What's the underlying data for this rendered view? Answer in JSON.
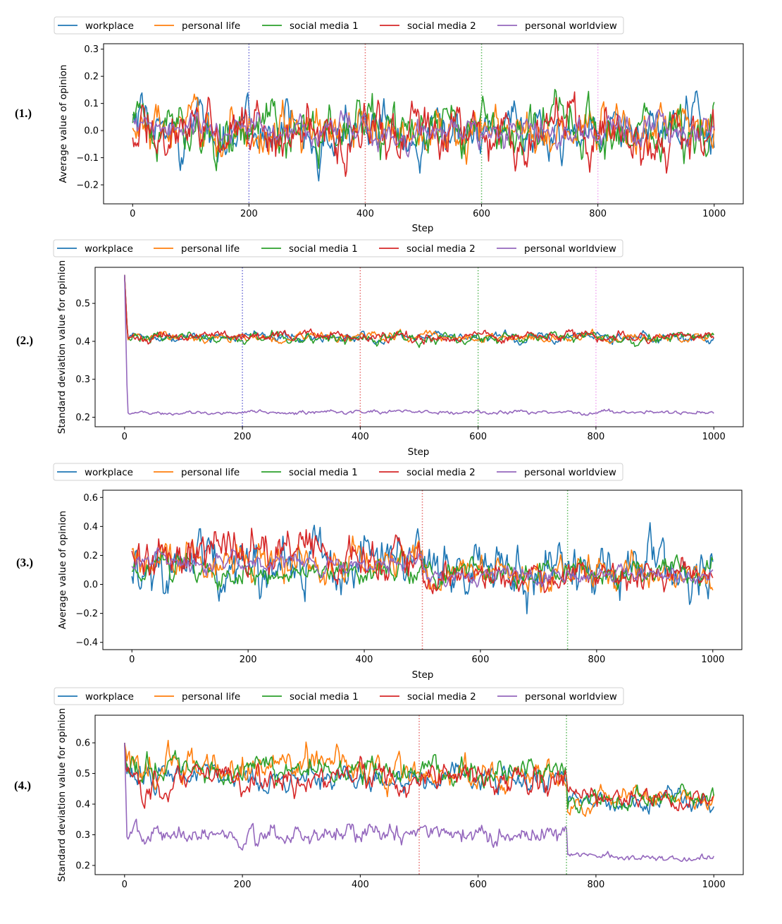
{
  "series_names": [
    "workplace",
    "personal life",
    "social media 1",
    "social media 2",
    "personal worldview"
  ],
  "colors": {
    "workplace": "#1f77b4",
    "personal_life": "#ff7f0e",
    "social_media_1": "#2ca02c",
    "social_media_2": "#d62728",
    "personal_worldview": "#9467bd",
    "vline_blue": "#6b6bd6",
    "vline_red": "#e66b6b",
    "vline_green": "#5cb85c",
    "vline_pink": "#f0a6f0"
  },
  "chart_data": [
    {
      "panel_label": "(1.)",
      "type": "line",
      "title": "",
      "xlabel": "Step",
      "ylabel": "Average value of opinion",
      "xlim": [
        -50,
        1050
      ],
      "ylim": [
        -0.27,
        0.32
      ],
      "xticks": [
        0,
        200,
        400,
        600,
        800,
        1000
      ],
      "xtick_labels": [
        "0",
        "200",
        "400",
        "600",
        "800",
        "1000"
      ],
      "yticks": [
        -0.2,
        -0.1,
        0.0,
        0.1,
        0.2,
        0.3
      ],
      "ytick_labels": [
        "−0.2",
        "−0.1",
        "0.0",
        "0.1",
        "0.2",
        "0.3"
      ],
      "legend_position": "top-left outside",
      "vlines": [
        {
          "x": 200,
          "color": "#6b6bd6"
        },
        {
          "x": 400,
          "color": "#e66b6b"
        },
        {
          "x": 600,
          "color": "#5cb85c"
        },
        {
          "x": 800,
          "color": "#f0a6f0"
        }
      ],
      "series": [
        {
          "name": "workplace",
          "color": "#1f77b4",
          "segments": [
            {
              "x0": 0,
              "x1": 1000,
              "mean": 0.0,
              "amp": 0.085
            }
          ]
        },
        {
          "name": "personal life",
          "color": "#ff7f0e",
          "segments": [
            {
              "x0": 0,
              "x1": 1000,
              "mean": 0.0,
              "amp": 0.085
            }
          ]
        },
        {
          "name": "social media 1",
          "color": "#2ca02c",
          "segments": [
            {
              "x0": 0,
              "x1": 1000,
              "mean": 0.0,
              "amp": 0.09
            }
          ]
        },
        {
          "name": "social media 2",
          "color": "#d62728",
          "segments": [
            {
              "x0": 0,
              "x1": 1000,
              "mean": 0.0,
              "amp": 0.09
            }
          ]
        },
        {
          "name": "personal worldview",
          "color": "#9467bd",
          "segments": [
            {
              "x0": 0,
              "x1": 1000,
              "mean": 0.0,
              "amp": 0.05
            }
          ]
        }
      ]
    },
    {
      "panel_label": "(2.)",
      "type": "line",
      "title": "",
      "xlabel": "Step",
      "ylabel": "Standard deviation value for opinion",
      "xlim": [
        -50,
        1050
      ],
      "ylim": [
        0.175,
        0.595
      ],
      "xticks": [
        0,
        200,
        400,
        600,
        800,
        1000
      ],
      "xtick_labels": [
        "0",
        "200",
        "400",
        "600",
        "800",
        "1000"
      ],
      "yticks": [
        0.2,
        0.3,
        0.4,
        0.5
      ],
      "ytick_labels": [
        "0.2",
        "0.3",
        "0.4",
        "0.5"
      ],
      "legend_position": "top-left outside",
      "vlines": [
        {
          "x": 200,
          "color": "#6b6bd6"
        },
        {
          "x": 400,
          "color": "#e66b6b"
        },
        {
          "x": 600,
          "color": "#5cb85c"
        },
        {
          "x": 800,
          "color": "#f0a6f0"
        }
      ],
      "series": [
        {
          "name": "workplace",
          "color": "#1f77b4",
          "start": 0.575,
          "settle": 5,
          "segments": [
            {
              "x0": 0,
              "x1": 1000,
              "mean": 0.412,
              "amp": 0.012
            }
          ]
        },
        {
          "name": "personal life",
          "color": "#ff7f0e",
          "start": 0.575,
          "settle": 5,
          "segments": [
            {
              "x0": 0,
              "x1": 1000,
              "mean": 0.412,
              "amp": 0.012
            }
          ]
        },
        {
          "name": "social media 1",
          "color": "#2ca02c",
          "start": 0.575,
          "settle": 5,
          "segments": [
            {
              "x0": 0,
              "x1": 1000,
              "mean": 0.41,
              "amp": 0.013
            }
          ]
        },
        {
          "name": "social media 2",
          "color": "#d62728",
          "start": 0.575,
          "settle": 5,
          "segments": [
            {
              "x0": 0,
              "x1": 1000,
              "mean": 0.413,
              "amp": 0.013
            }
          ]
        },
        {
          "name": "personal worldview",
          "color": "#9467bd",
          "start": 0.575,
          "settle": 5,
          "segments": [
            {
              "x0": 0,
              "x1": 1000,
              "mean": 0.213,
              "amp": 0.005
            }
          ]
        }
      ]
    },
    {
      "panel_label": "(3.)",
      "type": "line",
      "title": "",
      "xlabel": "Step",
      "ylabel": "Average value of opinion",
      "xlim": [
        -50,
        1050
      ],
      "ylim": [
        -0.45,
        0.65
      ],
      "xticks": [
        0,
        200,
        400,
        600,
        800,
        1000
      ],
      "xtick_labels": [
        "0",
        "200",
        "400",
        "600",
        "800",
        "1000"
      ],
      "yticks": [
        -0.4,
        -0.2,
        0.0,
        0.2,
        0.4,
        0.6
      ],
      "ytick_labels": [
        "−0.4",
        "−0.2",
        "0.0",
        "0.2",
        "0.4",
        "0.6"
      ],
      "legend_position": "top-left outside",
      "vlines": [
        {
          "x": 500,
          "color": "#e66b6b"
        },
        {
          "x": 750,
          "color": "#5cb85c"
        }
      ],
      "series": [
        {
          "name": "workplace",
          "color": "#1f77b4",
          "segments": [
            {
              "x0": 0,
              "x1": 1000,
              "mean": 0.13,
              "amp": 0.18
            }
          ]
        },
        {
          "name": "personal life",
          "color": "#ff7f0e",
          "segments": [
            {
              "x0": 0,
              "x1": 500,
              "mean": 0.17,
              "amp": 0.12
            },
            {
              "x0": 500,
              "x1": 1000,
              "mean": 0.07,
              "amp": 0.1
            }
          ]
        },
        {
          "name": "social media 1",
          "color": "#2ca02c",
          "segments": [
            {
              "x0": 0,
              "x1": 1000,
              "mean": 0.09,
              "amp": 0.08
            }
          ]
        },
        {
          "name": "social media 2",
          "color": "#d62728",
          "segments": [
            {
              "x0": 0,
              "x1": 500,
              "mean": 0.2,
              "amp": 0.16
            },
            {
              "x0": 500,
              "x1": 1000,
              "mean": 0.06,
              "amp": 0.1
            }
          ]
        },
        {
          "name": "personal worldview",
          "color": "#9467bd",
          "segments": [
            {
              "x0": 0,
              "x1": 500,
              "mean": 0.15,
              "amp": 0.06
            },
            {
              "x0": 500,
              "x1": 1000,
              "mean": 0.06,
              "amp": 0.05
            }
          ]
        }
      ]
    },
    {
      "panel_label": "(4.)",
      "type": "line",
      "title": "",
      "xlabel": "",
      "ylabel": "Standard deviation value for opinion",
      "xlim": [
        -50,
        1050
      ],
      "ylim": [
        0.17,
        0.69
      ],
      "xticks": [
        0,
        200,
        400,
        600,
        800,
        1000
      ],
      "xtick_labels": [
        "0",
        "200",
        "400",
        "600",
        "800",
        "1000"
      ],
      "yticks": [
        0.2,
        0.3,
        0.4,
        0.5,
        0.6
      ],
      "ytick_labels": [
        "0.2",
        "0.3",
        "0.4",
        "0.5",
        "0.6"
      ],
      "legend_position": "top-left outside",
      "vlines": [
        {
          "x": 500,
          "color": "#e66b6b"
        },
        {
          "x": 750,
          "color": "#5cb85c"
        }
      ],
      "series": [
        {
          "name": "workplace",
          "color": "#1f77b4",
          "start": 0.6,
          "settle": 3,
          "segments": [
            {
              "x0": 0,
              "x1": 750,
              "mean": 0.49,
              "amp": 0.04
            },
            {
              "x0": 750,
              "x1": 1000,
              "mean": 0.41,
              "amp": 0.03
            }
          ]
        },
        {
          "name": "personal life",
          "color": "#ff7f0e",
          "start": 0.6,
          "settle": 3,
          "segments": [
            {
              "x0": 0,
              "x1": 500,
              "mean": 0.53,
              "amp": 0.05
            },
            {
              "x0": 500,
              "x1": 750,
              "mean": 0.5,
              "amp": 0.04
            },
            {
              "x0": 750,
              "x1": 1000,
              "mean": 0.42,
              "amp": 0.03
            }
          ]
        },
        {
          "name": "social media 1",
          "color": "#2ca02c",
          "start": 0.6,
          "settle": 3,
          "segments": [
            {
              "x0": 0,
              "x1": 750,
              "mean": 0.51,
              "amp": 0.045
            },
            {
              "x0": 750,
              "x1": 1000,
              "mean": 0.41,
              "amp": 0.03
            }
          ]
        },
        {
          "name": "social media 2",
          "color": "#d62728",
          "start": 0.6,
          "settle": 3,
          "segments": [
            {
              "x0": 0,
              "x1": 750,
              "mean": 0.48,
              "amp": 0.045
            },
            {
              "x0": 750,
              "x1": 1000,
              "mean": 0.42,
              "amp": 0.03
            }
          ]
        },
        {
          "name": "personal worldview",
          "color": "#9467bd",
          "start": 0.6,
          "settle": 4,
          "segments": [
            {
              "x0": 0,
              "x1": 750,
              "mean": 0.3,
              "amp": 0.03
            },
            {
              "x0": 750,
              "x1": 1000,
              "mean": 0.225,
              "amp": 0.012
            }
          ]
        }
      ]
    }
  ]
}
